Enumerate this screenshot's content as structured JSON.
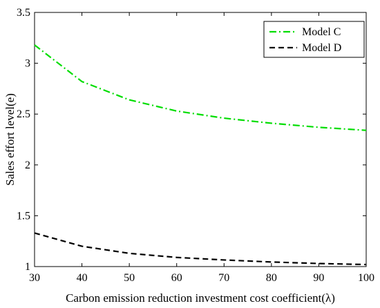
{
  "chart_data": {
    "type": "line",
    "xlabel": "Carbon emission reduction investment cost coefficient(λ)",
    "ylabel": "Sales effort level(e)",
    "xlim": [
      30,
      100
    ],
    "ylim": [
      1,
      3.5
    ],
    "xticks": [
      30,
      40,
      50,
      60,
      70,
      80,
      90,
      100
    ],
    "yticks": [
      1,
      1.5,
      2,
      2.5,
      3,
      3.5
    ],
    "xtick_labels": [
      "30",
      "40",
      "50",
      "60",
      "70",
      "80",
      "90",
      "100"
    ],
    "ytick_labels": [
      "1",
      "1.5",
      "2",
      "2.5",
      "3",
      "3.5"
    ],
    "grid": false,
    "legend_position": "top-right",
    "x": [
      30,
      40,
      50,
      60,
      70,
      80,
      90,
      100
    ],
    "series": [
      {
        "name": "Model C",
        "values": [
          3.18,
          2.82,
          2.64,
          2.53,
          2.46,
          2.41,
          2.37,
          2.34
        ],
        "color": "#00dd00",
        "style": "dash-dot"
      },
      {
        "name": "Model D",
        "values": [
          1.33,
          1.2,
          1.13,
          1.09,
          1.065,
          1.045,
          1.03,
          1.02
        ],
        "color": "#000000",
        "style": "dashed"
      }
    ]
  }
}
